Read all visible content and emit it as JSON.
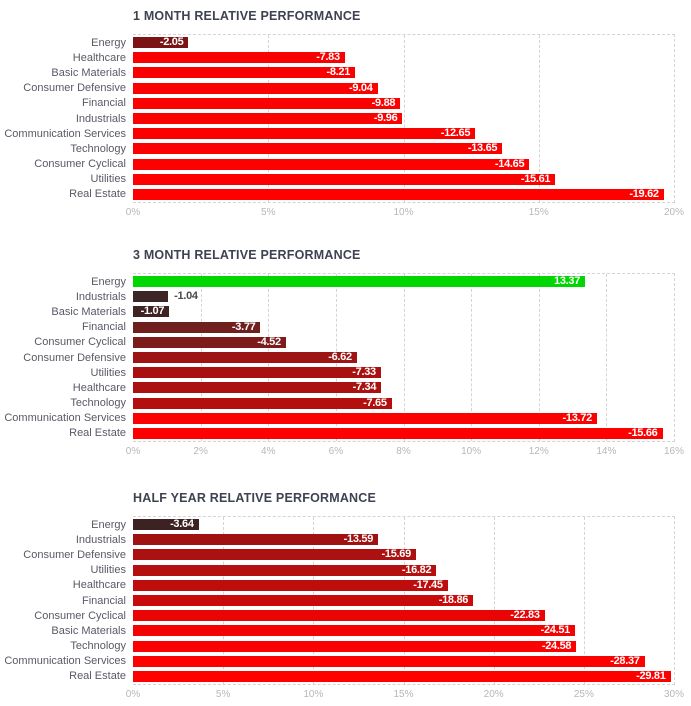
{
  "page": {
    "background": "#ffffff",
    "title_color": "#3f4351",
    "category_label_color": "#585a64",
    "tick_label_color": "#b7b7b7",
    "grid_color": "#d4d4d4",
    "value_label_inside_color": "#ffffff",
    "value_label_outside_color": "#4a4a4a",
    "positive_color": "#00d602",
    "negative_color_max": "#ff0000"
  },
  "chart_data": [
    {
      "type": "bar",
      "orientation": "horizontal",
      "title": "1 MONTH RELATIVE PERFORMANCE",
      "xlabel": "",
      "ylabel": "",
      "xlim": [
        0,
        20
      ],
      "tick_labels": [
        "0%",
        "5%",
        "10%",
        "15%",
        "20%"
      ],
      "grid": "vertical-dashed",
      "legend": "none",
      "categories": [
        "Energy",
        "Healthcare",
        "Basic Materials",
        "Consumer Defensive",
        "Financial",
        "Industrials",
        "Communication Services",
        "Technology",
        "Consumer Cyclical",
        "Utilities",
        "Real Estate"
      ],
      "values": [
        -2.05,
        -7.83,
        -8.21,
        -9.04,
        -9.88,
        -9.96,
        -12.65,
        -13.65,
        -14.65,
        -15.61,
        -19.62
      ],
      "value_labels": [
        "-2.05",
        "-7.83",
        "-8.21",
        "-9.04",
        "-9.88",
        "-9.96",
        "-12.65",
        "-13.65",
        "-14.65",
        "-15.61",
        "-19.62"
      ],
      "bar_colors": [
        "#7b1515",
        "#fa0101",
        "#fa0101",
        "#fb0100",
        "#fb0100",
        "#fb0100",
        "#fc0000",
        "#fc0000",
        "#fd0000",
        "#fe0000",
        "#ff0000"
      ],
      "label_positions": [
        "in",
        "in",
        "in",
        "in",
        "in",
        "in",
        "in",
        "in",
        "in",
        "in",
        "in"
      ]
    },
    {
      "type": "bar",
      "orientation": "horizontal",
      "title": "3 MONTH RELATIVE PERFORMANCE",
      "xlabel": "",
      "ylabel": "",
      "xlim": [
        0,
        16
      ],
      "tick_labels": [
        "0%",
        "2%",
        "4%",
        "6%",
        "8%",
        "10%",
        "12%",
        "14%",
        "16%"
      ],
      "grid": "vertical-dashed",
      "legend": "none",
      "categories": [
        "Energy",
        "Industrials",
        "Basic Materials",
        "Financial",
        "Consumer Cyclical",
        "Consumer Defensive",
        "Utilities",
        "Healthcare",
        "Technology",
        "Communication Services",
        "Real Estate"
      ],
      "values": [
        13.37,
        -1.04,
        -1.07,
        -3.77,
        -4.52,
        -6.62,
        -7.33,
        -7.34,
        -7.65,
        -13.72,
        -15.66
      ],
      "value_labels": [
        "13.37",
        "-1.04",
        "-1.07",
        "-3.77",
        "-4.52",
        "-6.62",
        "-7.33",
        "-7.34",
        "-7.65",
        "-13.72",
        "-15.66"
      ],
      "bar_colors": [
        "#00d602",
        "#3f2626",
        "#402424",
        "#701f1f",
        "#7d1a1a",
        "#9c1414",
        "#a91111",
        "#aa1111",
        "#b30f0f",
        "#fa0202",
        "#fe0000"
      ],
      "label_positions": [
        "in",
        "out",
        "in",
        "in",
        "in",
        "in",
        "in",
        "in",
        "in",
        "in",
        "in"
      ]
    },
    {
      "type": "bar",
      "orientation": "horizontal",
      "title": "HALF YEAR RELATIVE PERFORMANCE",
      "xlabel": "",
      "ylabel": "",
      "xlim": [
        0,
        30
      ],
      "tick_labels": [
        "0%",
        "5%",
        "10%",
        "15%",
        "20%",
        "25%",
        "30%"
      ],
      "grid": "vertical-dashed",
      "legend": "none",
      "categories": [
        "Energy",
        "Industrials",
        "Consumer Defensive",
        "Utilities",
        "Healthcare",
        "Financial",
        "Consumer Cyclical",
        "Basic Materials",
        "Technology",
        "Communication Services",
        "Real Estate"
      ],
      "values": [
        -3.64,
        -13.59,
        -15.69,
        -16.82,
        -17.45,
        -18.86,
        -22.83,
        -24.51,
        -24.58,
        -28.37,
        -29.81
      ],
      "value_labels": [
        "-3.64",
        "-13.59",
        "-15.69",
        "-16.82",
        "-17.45",
        "-18.86",
        "-22.83",
        "-24.51",
        "-24.58",
        "-28.37",
        "-29.81"
      ],
      "bar_colors": [
        "#3c2222",
        "#a01212",
        "#ab1111",
        "#b41010",
        "#bd0d0d",
        "#c80a0a",
        "#ea0404",
        "#f40202",
        "#fb0101",
        "#fd0000",
        "#ff0000"
      ],
      "label_positions": [
        "in",
        "in",
        "in",
        "in",
        "in",
        "in",
        "in",
        "in",
        "in",
        "in",
        "in"
      ]
    }
  ]
}
